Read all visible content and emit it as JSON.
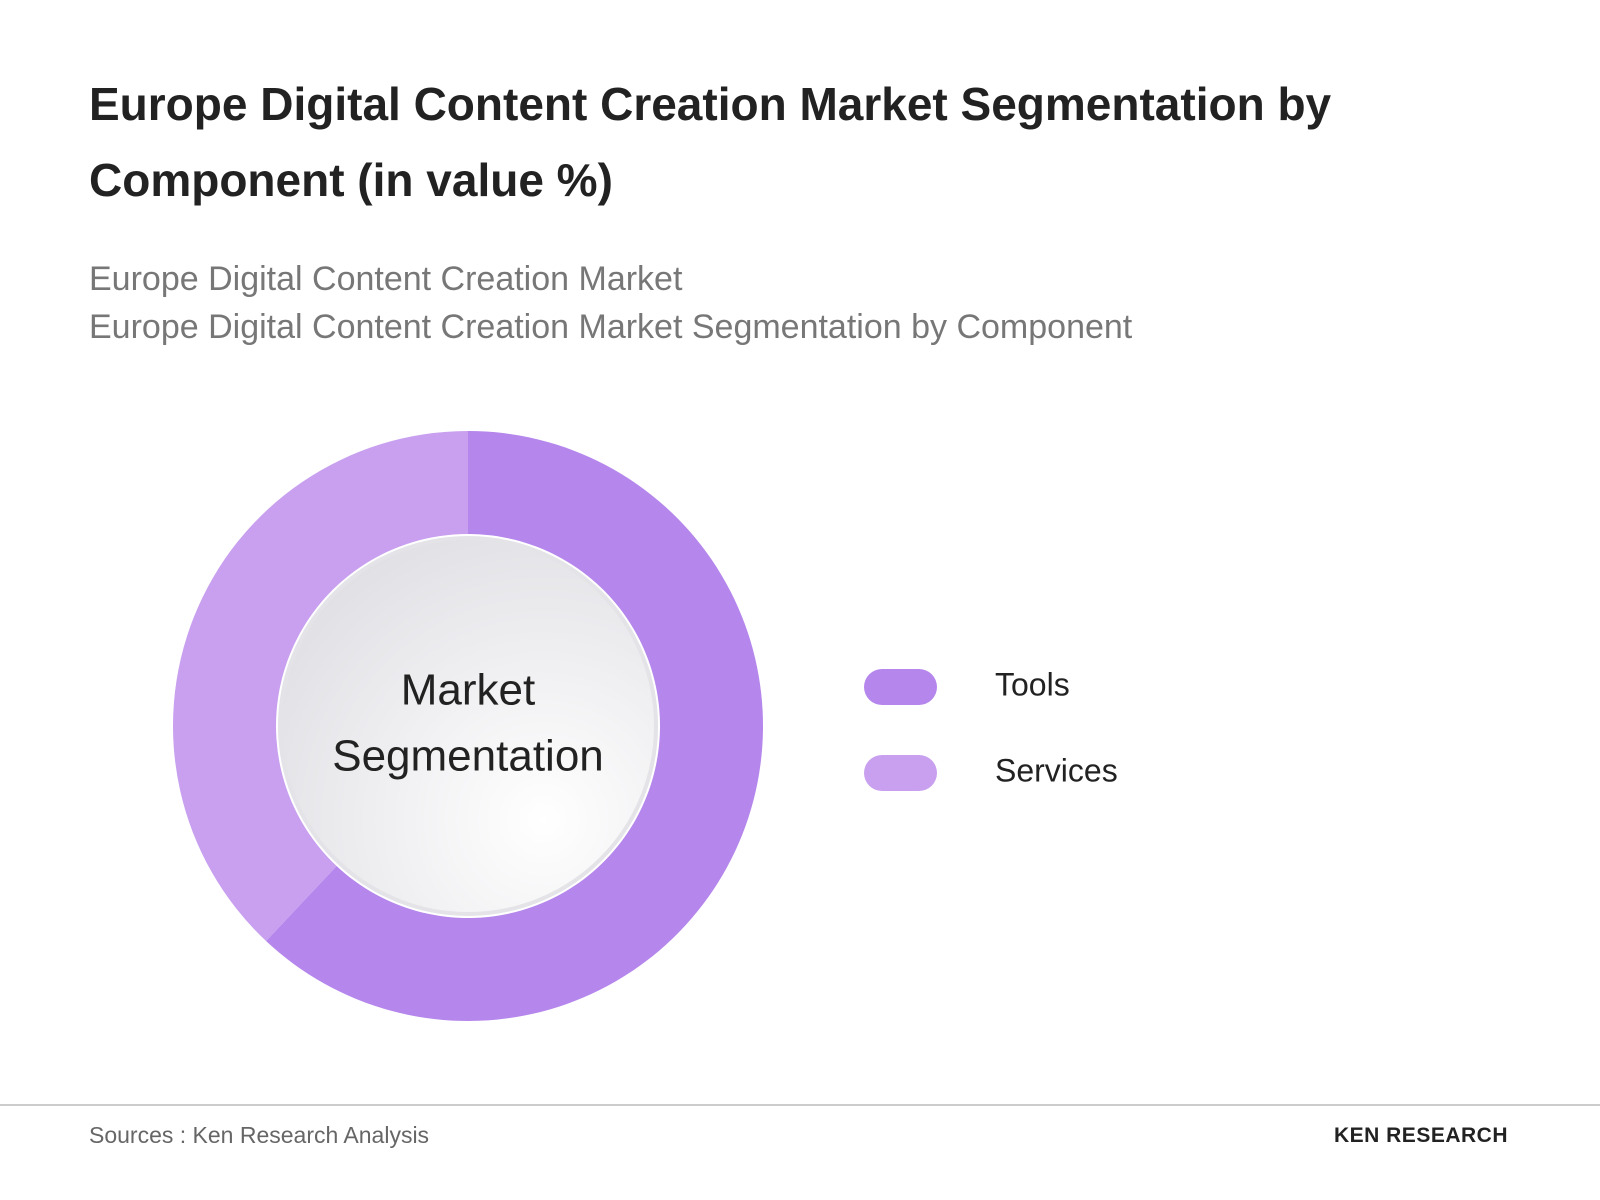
{
  "chart_data": {
    "type": "pie",
    "title": "Europe Digital Content Creation Market Segmentation by Component (in value %)",
    "subtitle": [
      "Europe Digital Content Creation Market",
      "Europe Digital Content Creation Market Segmentation by Component"
    ],
    "center_label": [
      "Market",
      "Segmentation"
    ],
    "categories": [
      "Tools",
      "Services"
    ],
    "values": [
      62,
      38
    ],
    "colors": [
      "#b586ec",
      "#c8a0ef"
    ],
    "source": "Sources : Ken Research Analysis",
    "logo": "KEN RESEARCH"
  }
}
